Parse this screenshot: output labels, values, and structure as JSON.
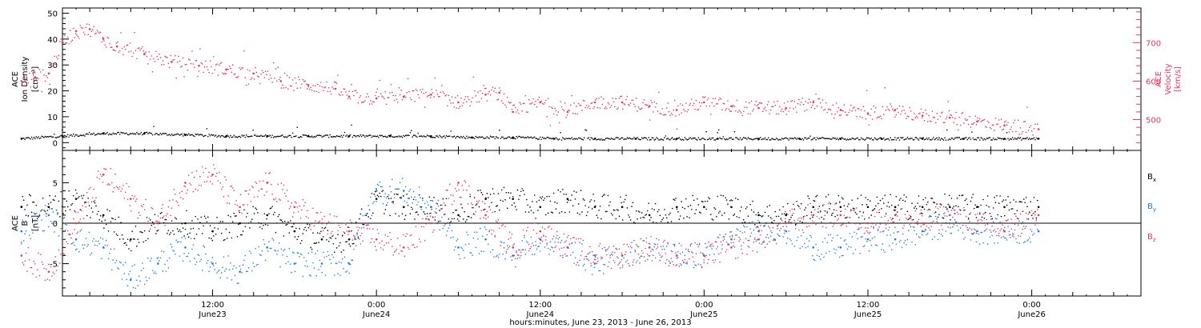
{
  "chart_data": [
    {
      "type": "scatter",
      "panel": "top",
      "left_axis": {
        "label_lines": [
          "ACE",
          "Ion Density",
          "[cm⁻³]"
        ],
        "ylim": [
          -3,
          52
        ],
        "ticks": [
          0,
          10,
          20,
          30,
          40,
          50
        ],
        "color": "#000000"
      },
      "right_axis": {
        "label_lines": [
          "ACE",
          "Velocity",
          "[km/s]"
        ],
        "ylim": [
          420,
          790
        ],
        "ticks": [
          500,
          600,
          700
        ],
        "color": "#e8365d"
      },
      "series": [
        {
          "axis": "left",
          "color": "#000000",
          "x": [
            0,
            3,
            6,
            9,
            12,
            15,
            18,
            21,
            24,
            27,
            30,
            33,
            36,
            39,
            42,
            45,
            48,
            51,
            54,
            57,
            60,
            63,
            66,
            69,
            72,
            74.5
          ],
          "y": [
            1.5,
            2.5,
            3.5,
            3.5,
            3,
            2.5,
            2.5,
            2.5,
            2.5,
            2.5,
            2.5,
            2,
            2,
            1.5,
            1.5,
            1.5,
            1.5,
            1.5,
            1.5,
            1.5,
            1.5,
            1.5,
            1.5,
            1.5,
            1.5,
            1.5
          ]
        },
        {
          "axis": "right",
          "color": "#e8365d",
          "x": [
            0,
            1,
            2,
            3,
            4,
            5,
            6,
            7,
            9,
            11,
            13,
            15,
            17,
            19,
            21,
            23,
            24,
            26,
            28,
            30,
            32,
            34,
            35,
            36,
            38,
            40,
            42,
            44,
            46,
            48,
            50,
            52,
            54,
            56,
            58,
            60,
            62,
            64,
            66,
            68,
            70,
            72,
            74.5
          ],
          "y": [
            600,
            610,
            620,
            700,
            730,
            735,
            710,
            690,
            670,
            650,
            640,
            630,
            620,
            600,
            590,
            580,
            560,
            555,
            560,
            565,
            545,
            565,
            570,
            520,
            545,
            520,
            545,
            545,
            535,
            525,
            545,
            535,
            530,
            530,
            545,
            525,
            515,
            525,
            510,
            505,
            495,
            485,
            475
          ]
        }
      ]
    },
    {
      "type": "scatter",
      "panel": "bottom",
      "left_axis": {
        "label_lines": [
          "ACE",
          "B",
          "[nT]"
        ],
        "ylim": [
          -9,
          9
        ],
        "ticks": [
          -5,
          0,
          5
        ],
        "color": "#000000"
      },
      "zero_line": true,
      "legend": [
        {
          "text": "B",
          "sub": "x",
          "color": "#000000"
        },
        {
          "text": "B",
          "sub": "y",
          "color": "#1e7fe0"
        },
        {
          "text": "B",
          "sub": "z",
          "color": "#e8365d"
        }
      ],
      "series": [
        {
          "name": "Bx",
          "color": "#000000",
          "x": [
            0,
            2,
            4,
            6,
            8,
            10,
            12,
            14,
            16,
            18,
            20,
            22,
            24,
            26,
            28,
            30,
            32,
            34,
            36,
            38,
            40,
            42,
            44,
            46,
            48,
            50,
            52,
            54,
            56,
            58,
            60,
            62,
            64,
            66,
            68,
            70,
            72,
            74.5
          ],
          "y": [
            2,
            2,
            3,
            1,
            -2,
            0,
            0,
            -1,
            0,
            1,
            -1,
            -2,
            -2,
            3,
            2,
            2,
            1,
            3,
            3,
            2,
            3,
            2,
            2,
            1,
            2,
            2,
            2,
            1,
            1,
            2,
            2,
            2,
            2,
            2,
            2,
            2,
            2,
            2
          ]
        },
        {
          "name": "By",
          "color": "#1e7fe0",
          "x": [
            0,
            2,
            4,
            6,
            8,
            10,
            12,
            14,
            16,
            18,
            20,
            22,
            24,
            26,
            28,
            30,
            32,
            34,
            36,
            38,
            40,
            42,
            44,
            46,
            48,
            50,
            52,
            54,
            56,
            58,
            60,
            62,
            64,
            66,
            68,
            70,
            72,
            74.5
          ],
          "y": [
            -1,
            1,
            -2,
            -3,
            -7,
            -5,
            -3,
            -5,
            -6,
            -3,
            -5,
            -5,
            -5,
            4,
            4,
            2,
            -3,
            -2,
            -4,
            -2,
            -3,
            -5,
            -4,
            -3,
            -4,
            -4,
            -2,
            -1,
            -1,
            -3,
            -3,
            -2,
            -2,
            -1,
            0,
            -1,
            -1,
            -1
          ]
        },
        {
          "name": "Bz",
          "color": "#e8365d",
          "x": [
            0,
            2,
            4,
            6,
            8,
            10,
            12,
            14,
            16,
            18,
            20,
            22,
            24,
            26,
            28,
            30,
            32,
            34,
            36,
            38,
            40,
            42,
            44,
            46,
            48,
            50,
            52,
            54,
            56,
            58,
            60,
            62,
            64,
            66,
            68,
            70,
            72,
            74.5
          ],
          "y": [
            -4,
            -6,
            0,
            6,
            3,
            0,
            5,
            6,
            2,
            5,
            2,
            0,
            -1,
            -2,
            -3,
            0,
            5,
            1,
            -3,
            -1,
            -3,
            -4,
            -4,
            -3,
            -4,
            -4,
            -3,
            -2,
            0,
            1,
            1,
            0,
            1,
            0,
            1,
            0,
            -1,
            1
          ]
        }
      ]
    }
  ],
  "x_axis": {
    "major_ticks": [
      {
        "x": 14,
        "time": "12:00",
        "date": "June23"
      },
      {
        "x": 26,
        "time": "0:00",
        "date": "June24"
      },
      {
        "x": 38,
        "time": "12:00",
        "date": "June24"
      },
      {
        "x": 50,
        "time": "0:00",
        "date": "June25"
      },
      {
        "x": 62,
        "time": "12:00",
        "date": "June25"
      },
      {
        "x": 74,
        "time": "0:00",
        "date": "June26"
      }
    ],
    "xlim": [
      3,
      82
    ],
    "label": "hours:minutes, June 23, 2013 - June 26, 2013"
  }
}
